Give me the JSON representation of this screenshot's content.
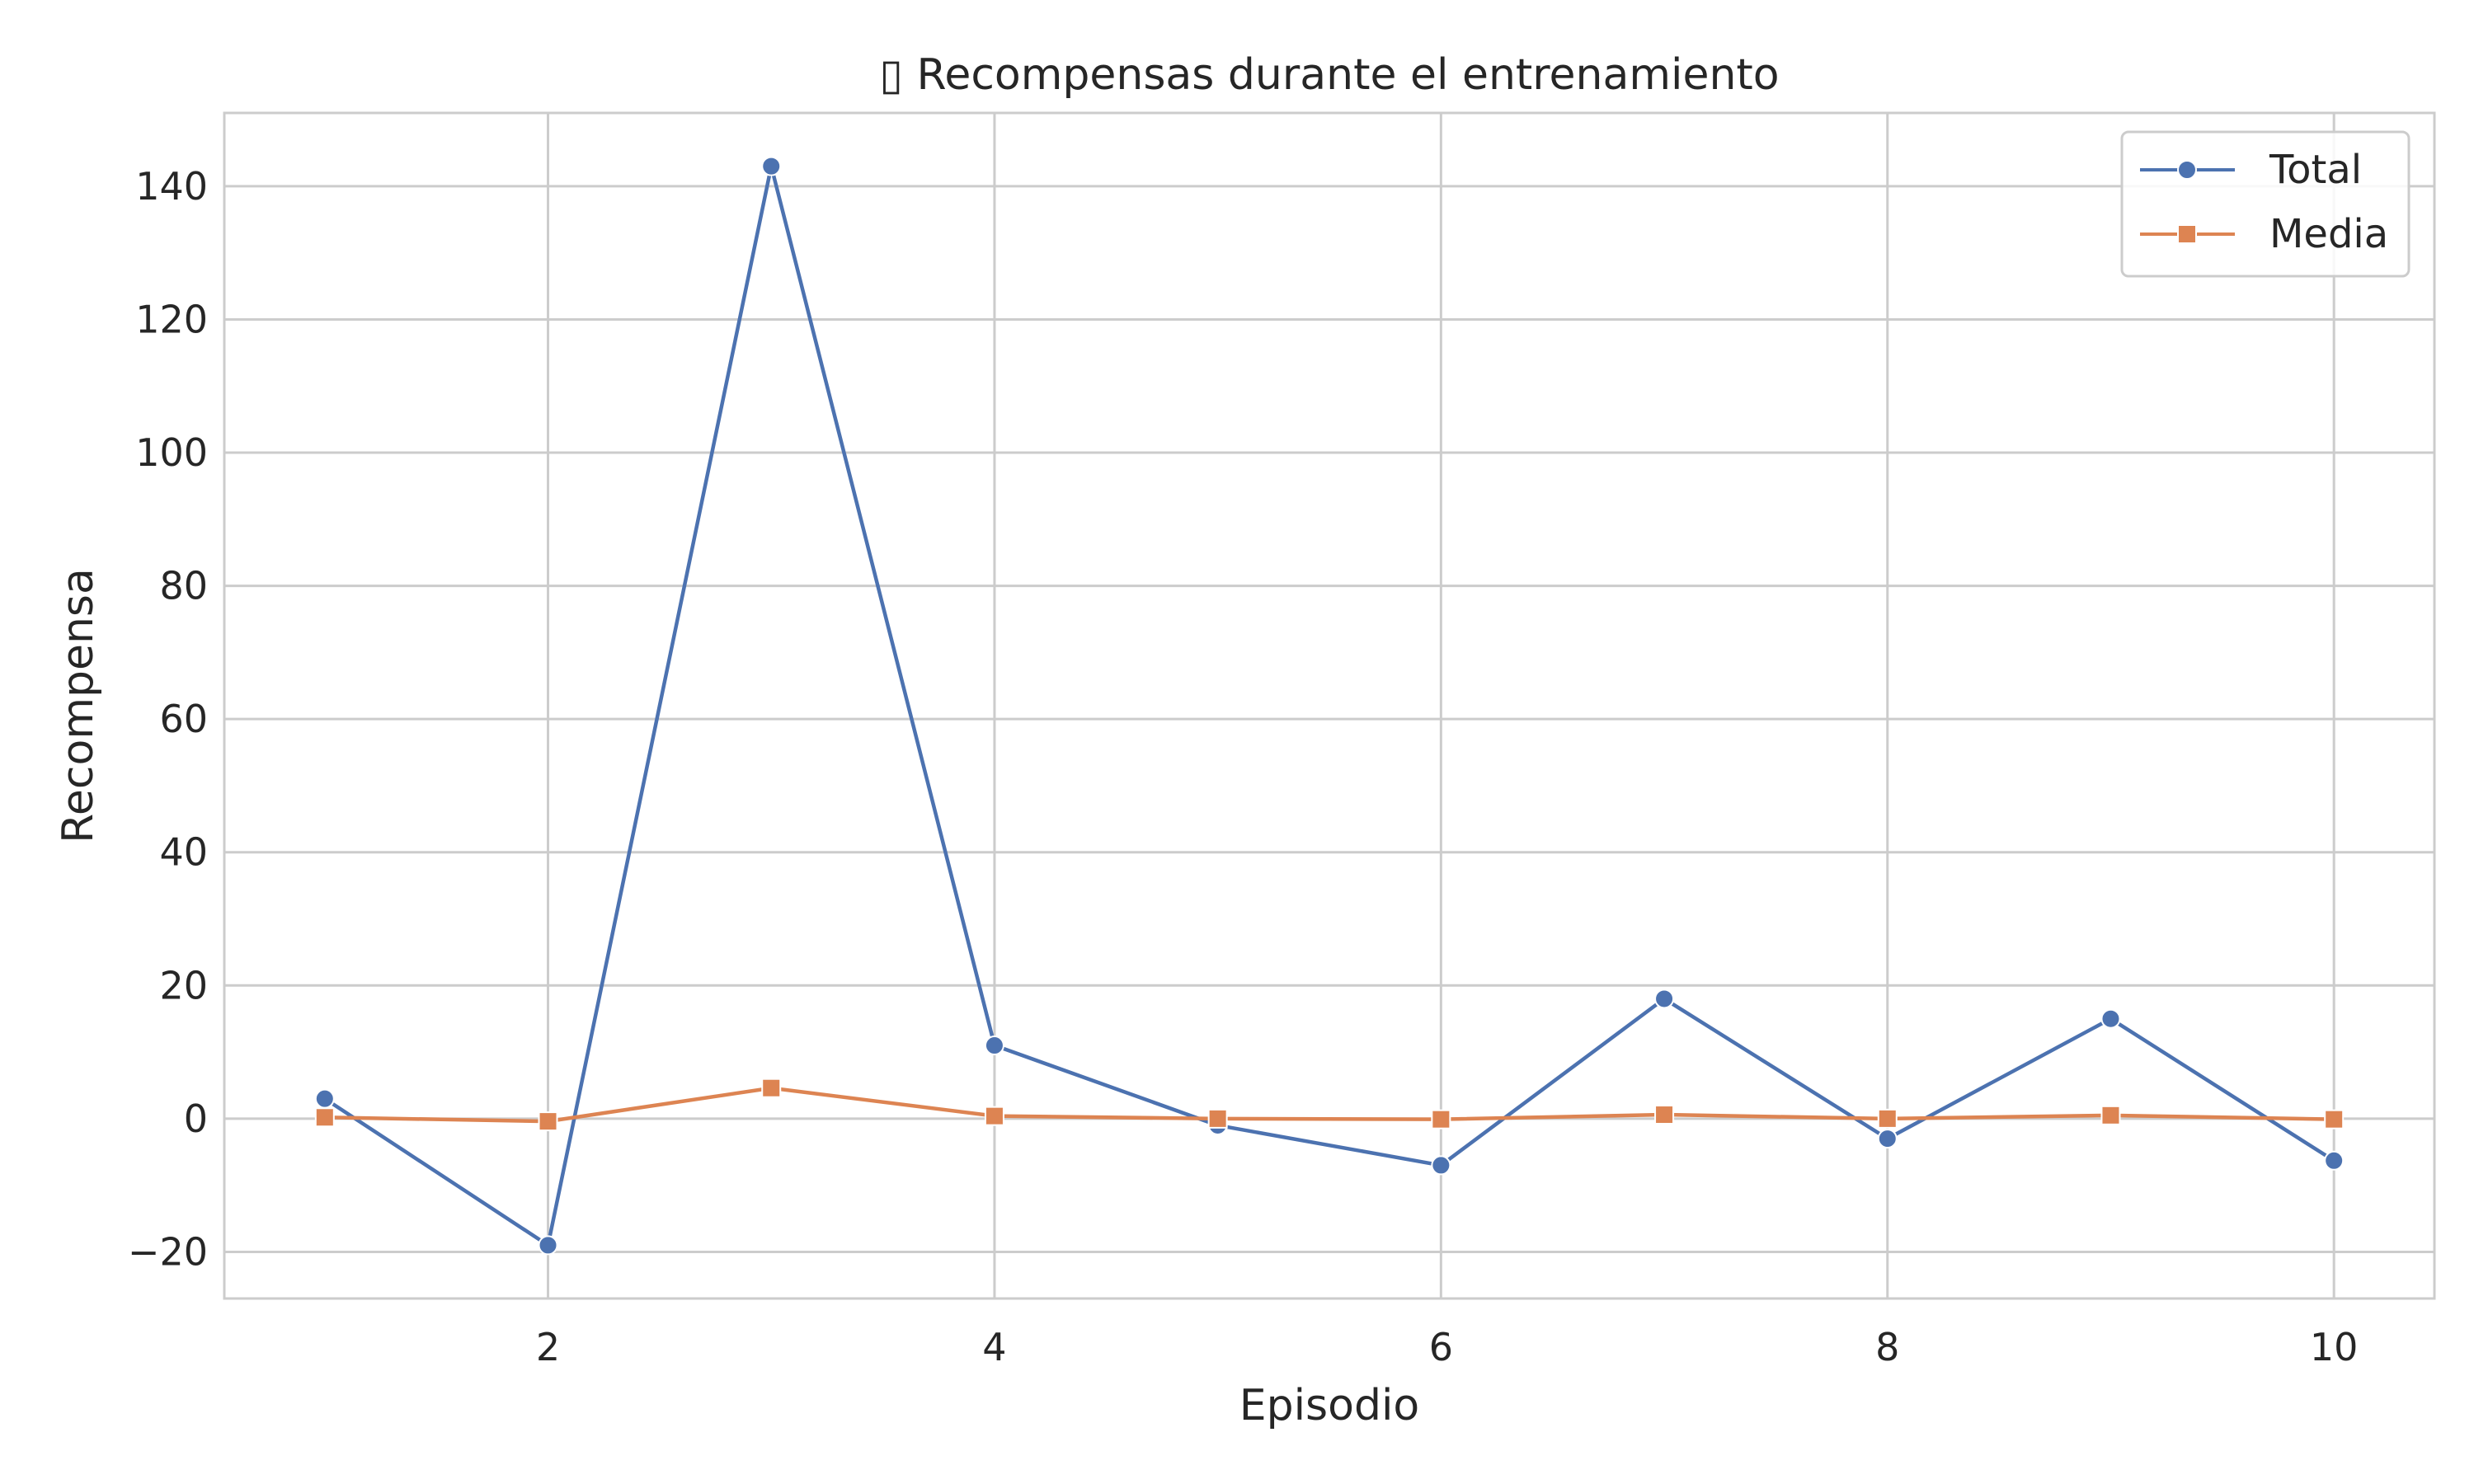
{
  "chart_data": {
    "type": "line",
    "title": "▯ Recompensas durante el entrenamiento",
    "xlabel": "Episodio",
    "ylabel": "Recompensa",
    "x": [
      1,
      2,
      3,
      4,
      5,
      6,
      7,
      8,
      9,
      10
    ],
    "xticks": [
      2,
      4,
      6,
      8,
      10
    ],
    "yticks": [
      -20,
      0,
      20,
      40,
      60,
      80,
      100,
      120,
      140
    ],
    "xlim": [
      0.55,
      10.45
    ],
    "ylim": [
      -27,
      151
    ],
    "grid": true,
    "legend_position": "top-right",
    "series": [
      {
        "name": "Total",
        "marker": "circle",
        "color": "#4c72b0",
        "values": [
          3,
          -19,
          143,
          11,
          -1,
          -7,
          18,
          -3,
          15,
          -6.3
        ]
      },
      {
        "name": "Media",
        "marker": "square",
        "color": "#dd8452",
        "values": [
          0.2,
          -0.4,
          4.6,
          0.4,
          0.0,
          -0.1,
          0.6,
          0.0,
          0.5,
          -0.1
        ]
      }
    ]
  }
}
